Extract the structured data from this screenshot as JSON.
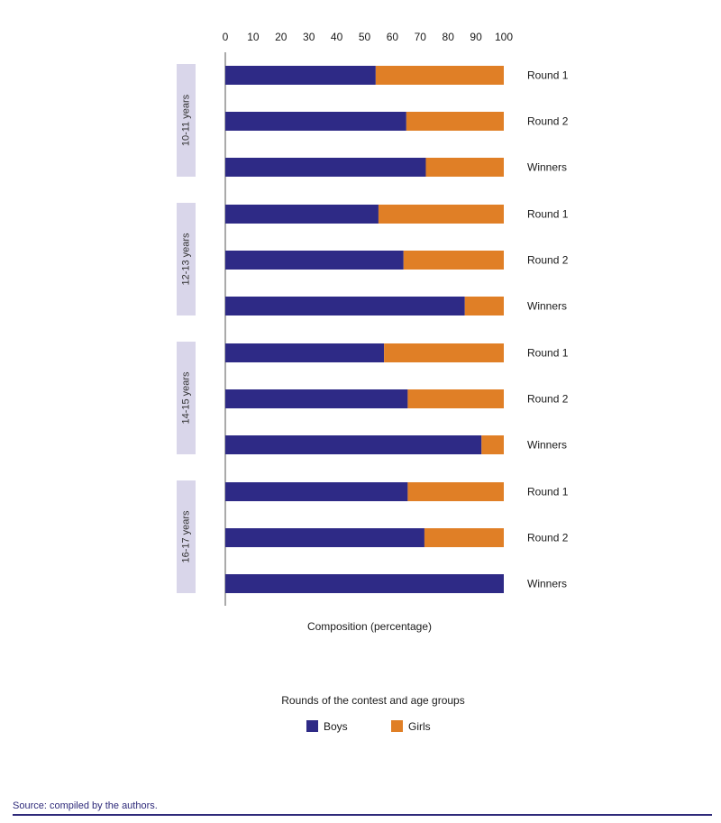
{
  "chart_data": {
    "type": "bar",
    "orientation": "horizontal",
    "stacked": true,
    "xlim": [
      0,
      100
    ],
    "xticks": [
      "0",
      "10",
      "20",
      "30",
      "40",
      "50",
      "60",
      "70",
      "80",
      "90",
      "100"
    ],
    "xlabel": "Composition (percentage)",
    "legend_title": "Rounds of the contest and age groups",
    "legend_placement": "bottom-center",
    "grid": false,
    "colors": {
      "Boys": "#2e2a86",
      "Girls": "#e07f26",
      "group_band": "#d9d6ea"
    },
    "groups": [
      {
        "label": "10-11 years",
        "bars": [
          {
            "category": "Round 1",
            "boys": 54,
            "girls": 46
          },
          {
            "category": "Round 2",
            "boys": 65,
            "girls": 35
          },
          {
            "category": "Winners",
            "boys": 72,
            "girls": 28
          }
        ]
      },
      {
        "label": "12-13 years",
        "bars": [
          {
            "category": "Round 1",
            "boys": 55,
            "girls": 45
          },
          {
            "category": "Round 2",
            "boys": 64,
            "girls": 36
          },
          {
            "category": "Winners",
            "boys": 86,
            "girls": 14
          }
        ]
      },
      {
        "label": "14-15 years",
        "bars": [
          {
            "category": "Round 1",
            "boys": 57,
            "girls": 43
          },
          {
            "category": "Round 2",
            "boys": 65.5,
            "girls": 34.5
          },
          {
            "category": "Winners",
            "boys": 92,
            "girls": 8
          }
        ]
      },
      {
        "label": "16-17 years",
        "bars": [
          {
            "category": "Round 1",
            "boys": 65.5,
            "girls": 34.5
          },
          {
            "category": "Round 2",
            "boys": 71.5,
            "girls": 28.5
          },
          {
            "category": "Winners",
            "boys": 100,
            "girls": 0
          }
        ]
      }
    ],
    "series": [
      {
        "name": "Boys"
      },
      {
        "name": "Girls"
      }
    ]
  },
  "footer": {
    "source": "Source: compiled by the authors."
  }
}
